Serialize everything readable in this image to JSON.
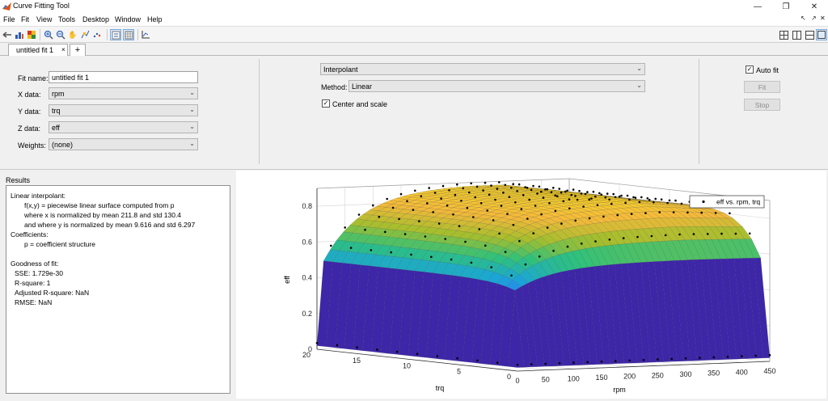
{
  "window": {
    "title": "Curve Fitting Tool"
  },
  "menu": [
    "File",
    "Fit",
    "View",
    "Tools",
    "Desktop",
    "Window",
    "Help"
  ],
  "tabs": {
    "active": "untitled fit 1",
    "add": "+"
  },
  "fit": {
    "fit_name_label": "Fit name:",
    "fit_name_value": "untitled fit 1",
    "x_label": "X data:",
    "x_value": "rpm",
    "y_label": "Y data:",
    "y_value": "trq",
    "z_label": "Z data:",
    "z_value": "eff",
    "weights_label": "Weights:",
    "weights_value": "(none)",
    "fit_type": "Interpolant",
    "method_label": "Method:",
    "method_value": "Linear",
    "center_scale_label": "Center and scale",
    "auto_fit_label": "Auto fit",
    "fit_button": "Fit",
    "stop_button": "Stop"
  },
  "results": {
    "title": "Results",
    "lines": [
      "Linear interpolant:",
      "f(x,y) = piecewise linear surface computed from p",
      "where x is normalized by mean 211.8 and std 130.4",
      "and where y is normalized by mean 9.616 and std 6.297",
      "Coefficients:",
      "p = coefficient structure",
      "Goodness of fit:",
      "SSE: 1.729e-30",
      "R-square: 1",
      "Adjusted R-square: NaN",
      "RMSE: NaN"
    ]
  },
  "chart_data": {
    "type": "surface",
    "legend": "eff vs. rpm, trq",
    "legend_position": "top-right",
    "xlabel": "rpm",
    "ylabel": "trq",
    "zlabel": "eff",
    "x_ticks": [
      "0",
      "50",
      "100",
      "150",
      "200",
      "250",
      "300",
      "350",
      "400",
      "450"
    ],
    "y_ticks": [
      "0",
      "5",
      "10",
      "15",
      "20"
    ],
    "z_ticks": [
      "0",
      "0.2",
      "0.4",
      "0.6",
      "0.8"
    ],
    "xlim": [
      0,
      450
    ],
    "ylim": [
      0,
      20
    ],
    "zlim": [
      0,
      0.9
    ],
    "grid": true,
    "colormap": [
      "#3e26a8",
      "#2f6dfa",
      "#1ba6d6",
      "#2ec17c",
      "#a5be2d",
      "#f5b93a",
      "#f9d826"
    ]
  }
}
